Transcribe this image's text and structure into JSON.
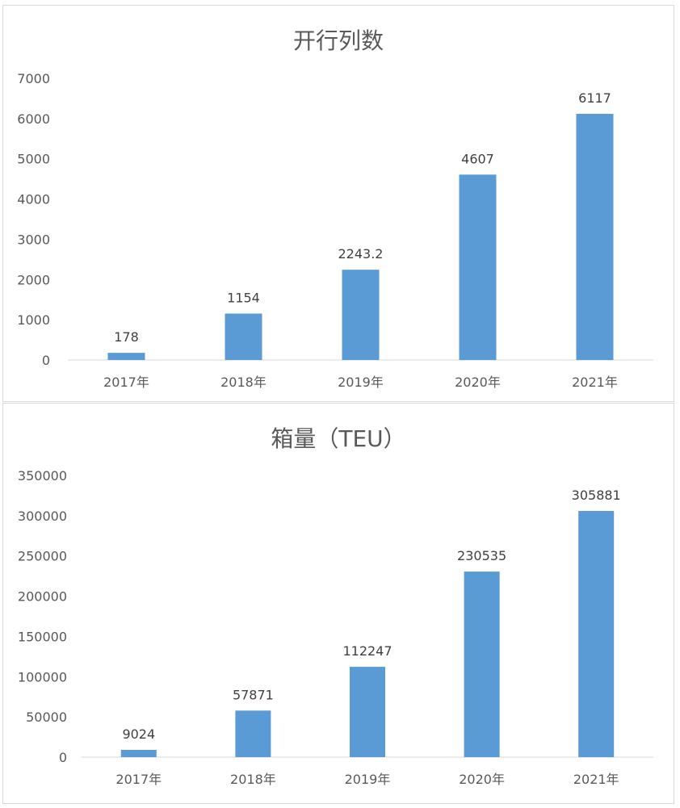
{
  "chart_data": [
    {
      "type": "bar",
      "title": "开行列数",
      "categories": [
        "2017年",
        "2018年",
        "2019年",
        "2020年",
        "2021年"
      ],
      "values": [
        178,
        1154,
        2243.2,
        4607,
        6117
      ],
      "data_labels": [
        "178",
        "1154",
        "2243.2",
        "4607",
        "6117"
      ],
      "yticks": [
        "0",
        "1000",
        "2000",
        "3000",
        "4000",
        "5000",
        "6000",
        "7000"
      ],
      "ylim": [
        0,
        7000
      ],
      "grid": false,
      "bar_color": "#5b9bd5"
    },
    {
      "type": "bar",
      "title": "箱量（TEU）",
      "categories": [
        "2017年",
        "2018年",
        "2019年",
        "2020年",
        "2021年"
      ],
      "values": [
        9024,
        57871,
        112247,
        230535,
        305881
      ],
      "data_labels": [
        "9024",
        "57871",
        "112247",
        "230535",
        "305881"
      ],
      "yticks": [
        "0",
        "50000",
        "100000",
        "150000",
        "200000",
        "250000",
        "300000",
        "350000"
      ],
      "ylim": [
        0,
        350000
      ],
      "grid": false,
      "bar_color": "#5b9bd5"
    }
  ]
}
